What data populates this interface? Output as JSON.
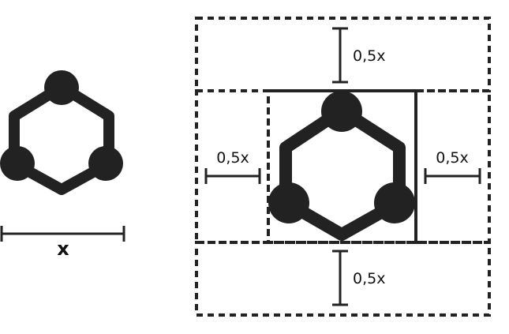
{
  "labels": {
    "unit": "x",
    "half_top": "0,5x",
    "half_left": "0,5x",
    "half_right": "0,5x",
    "half_bottom": "0,5x"
  },
  "colors": {
    "ink": "#222222",
    "background": "#ffffff"
  },
  "icons": {
    "logo": "hexagon-with-three-nodes"
  }
}
